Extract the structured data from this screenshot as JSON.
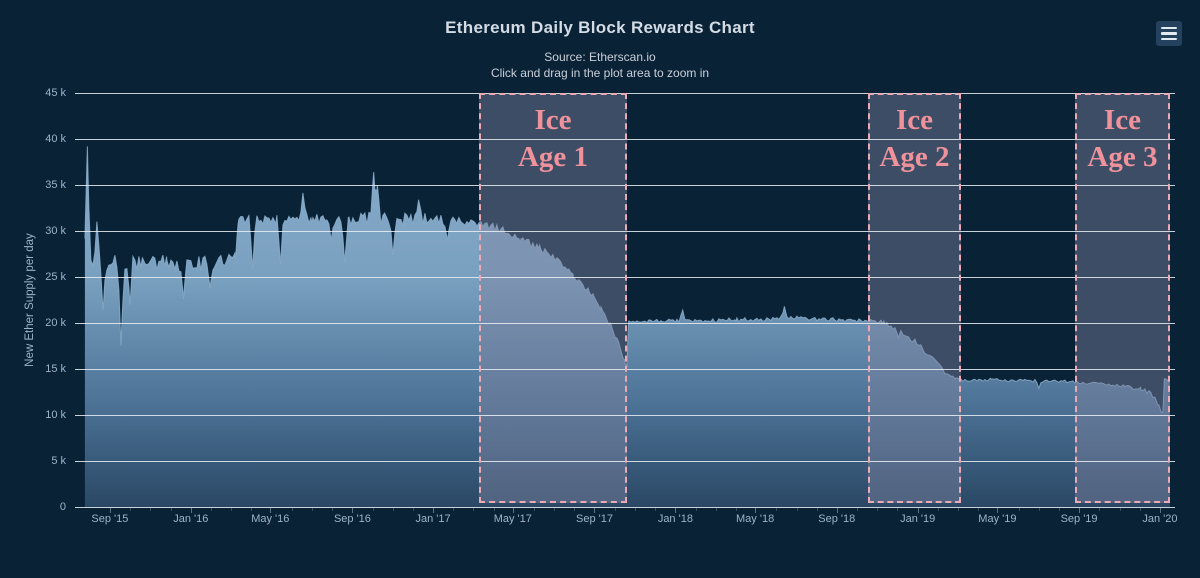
{
  "header": {
    "title": "Ethereum Daily Block Rewards Chart",
    "source": "Source: Etherscan.io",
    "hint": "Click and drag in the plot area to zoom in"
  },
  "menu": {
    "icon": "hamburger-icon"
  },
  "colors": {
    "background": "#092236",
    "title_text": "#d3dbe5",
    "axis_text": "#9db3c9",
    "gridline": "#ebf0f5",
    "area_gradient": [
      "#8cb0ce",
      "#7aa0c0",
      "#4c7296",
      "#2a4865"
    ],
    "area_edge": "#8cafcd",
    "band_fill": "rgba(126,130,160,0.45)",
    "band_border": "#ecaab4",
    "band_label": "#f0929c",
    "menu_button_bg": "#24415e",
    "menu_icon_bars": "#e2eaf2"
  },
  "chart_data": {
    "type": "area",
    "title": "Ethereum Daily Block Rewards Chart",
    "subtitle": "Source: Etherscan.io — Click and drag in the plot area to zoom in",
    "xlabel": "",
    "ylabel": "New Ether Supply per day",
    "grid": true,
    "legend": "none",
    "ylim": [
      0,
      45
    ],
    "y_unit": "k ETH per day",
    "y_ticks": [
      0,
      5,
      10,
      15,
      20,
      25,
      30,
      35,
      40,
      45
    ],
    "y_tick_labels": [
      "0",
      "5 k",
      "10 k",
      "15 k",
      "20 k",
      "25 k",
      "30 k",
      "35 k",
      "40 k",
      "45 k"
    ],
    "x_range": [
      2015.522,
      2020.062
    ],
    "x_ticks": [
      {
        "year": 2015.666,
        "label": "Sep '15"
      },
      {
        "year": 2016.0,
        "label": "Jan '16"
      },
      {
        "year": 2016.328,
        "label": "May '16"
      },
      {
        "year": 2016.667,
        "label": "Sep '16"
      },
      {
        "year": 2017.0,
        "label": "Jan '17"
      },
      {
        "year": 2017.329,
        "label": "May '17"
      },
      {
        "year": 2017.666,
        "label": "Sep '17"
      },
      {
        "year": 2018.0,
        "label": "Jan '18"
      },
      {
        "year": 2018.329,
        "label": "May '18"
      },
      {
        "year": 2018.666,
        "label": "Sep '18"
      },
      {
        "year": 2019.0,
        "label": "Jan '19"
      },
      {
        "year": 2019.329,
        "label": "May '19"
      },
      {
        "year": 2019.666,
        "label": "Sep '19"
      },
      {
        "year": 2020.0,
        "label": "Jan '20"
      }
    ],
    "points": [
      [
        2015.563,
        26.8,
        0.0
      ],
      [
        2015.575,
        27.3,
        1.1
      ],
      [
        2015.64,
        27.0,
        1.3
      ],
      [
        2015.72,
        26.6,
        1.4
      ],
      [
        2015.8,
        27.0,
        1.2
      ],
      [
        2015.9,
        26.8,
        1.1
      ],
      [
        2016.0,
        26.6,
        1.0
      ],
      [
        2016.1,
        27.0,
        1.0
      ],
      [
        2016.185,
        27.2,
        0.9
      ],
      [
        2016.195,
        31.4,
        0.8
      ],
      [
        2016.35,
        31.3,
        0.8
      ],
      [
        2016.5,
        31.5,
        0.8
      ],
      [
        2016.65,
        31.4,
        0.9
      ],
      [
        2016.76,
        31.8,
        1.0
      ],
      [
        2016.8,
        31.5,
        1.0
      ],
      [
        2016.9,
        31.6,
        0.9
      ],
      [
        2017.0,
        31.4,
        0.8
      ],
      [
        2017.1,
        31.3,
        0.7
      ],
      [
        2017.19,
        31.1,
        0.6
      ],
      [
        2017.28,
        30.3,
        0.5
      ],
      [
        2017.36,
        29.3,
        0.5
      ],
      [
        2017.44,
        28.2,
        0.5
      ],
      [
        2017.52,
        26.8,
        0.5
      ],
      [
        2017.58,
        25.4,
        0.5
      ],
      [
        2017.64,
        23.7,
        0.45
      ],
      [
        2017.69,
        21.8,
        0.45
      ],
      [
        2017.73,
        20.0,
        0.4
      ],
      [
        2017.765,
        17.8,
        0.35
      ],
      [
        2017.79,
        16.0,
        0.3
      ],
      [
        2017.8,
        15.3,
        0.2
      ],
      [
        2017.806,
        20.2,
        0.25
      ],
      [
        2018.0,
        20.3,
        0.25
      ],
      [
        2018.25,
        20.4,
        0.3
      ],
      [
        2018.5,
        20.6,
        0.3
      ],
      [
        2018.7,
        20.4,
        0.25
      ],
      [
        2018.795,
        20.3,
        0.25
      ],
      [
        2018.86,
        20.1,
        0.3
      ],
      [
        2018.92,
        19.4,
        0.35
      ],
      [
        2018.98,
        18.3,
        0.4
      ],
      [
        2019.03,
        17.0,
        0.4
      ],
      [
        2019.08,
        15.6,
        0.4
      ],
      [
        2019.13,
        14.3,
        0.3
      ],
      [
        2019.179,
        13.8,
        0.2
      ],
      [
        2019.3,
        13.9,
        0.2
      ],
      [
        2019.45,
        13.8,
        0.2
      ],
      [
        2019.6,
        13.7,
        0.2
      ],
      [
        2019.649,
        13.6,
        0.2
      ],
      [
        2019.75,
        13.4,
        0.2
      ],
      [
        2019.85,
        13.2,
        0.2
      ],
      [
        2019.92,
        12.9,
        0.25
      ],
      [
        2019.965,
        12.4,
        0.3
      ],
      [
        2019.99,
        11.4,
        0.3
      ],
      [
        2020.006,
        10.4,
        0.2
      ],
      [
        2020.012,
        10.3,
        0.15
      ],
      [
        2020.018,
        13.9,
        0.15
      ],
      [
        2020.041,
        13.8,
        0.15
      ]
    ],
    "spikes": [
      [
        2015.573,
        39.2
      ],
      [
        2015.613,
        31.2
      ],
      [
        2015.638,
        21.2
      ],
      [
        2015.712,
        17.3
      ],
      [
        2015.749,
        22.0
      ],
      [
        2015.97,
        22.6
      ],
      [
        2016.08,
        23.8
      ],
      [
        2016.255,
        25.9
      ],
      [
        2016.37,
        26.4
      ],
      [
        2016.463,
        34.2
      ],
      [
        2016.58,
        29.0
      ],
      [
        2016.635,
        26.6
      ],
      [
        2016.755,
        36.4
      ],
      [
        2016.77,
        35.0
      ],
      [
        2016.834,
        27.4
      ],
      [
        2016.94,
        33.4
      ],
      [
        2017.06,
        29.0
      ],
      [
        2018.03,
        21.4
      ],
      [
        2018.45,
        21.8
      ],
      [
        2018.92,
        18.4
      ],
      [
        2019.5,
        12.9
      ]
    ],
    "plot_bands": [
      {
        "label_lines": [
          "Ice",
          "Age 1"
        ],
        "from": 2017.19,
        "to": 2017.8
      },
      {
        "label_lines": [
          "Ice",
          "Age 2"
        ],
        "from": 2018.795,
        "to": 2019.179
      },
      {
        "label_lines": [
          "Ice",
          "Age 3"
        ],
        "from": 2019.649,
        "to": 2020.041
      }
    ]
  }
}
